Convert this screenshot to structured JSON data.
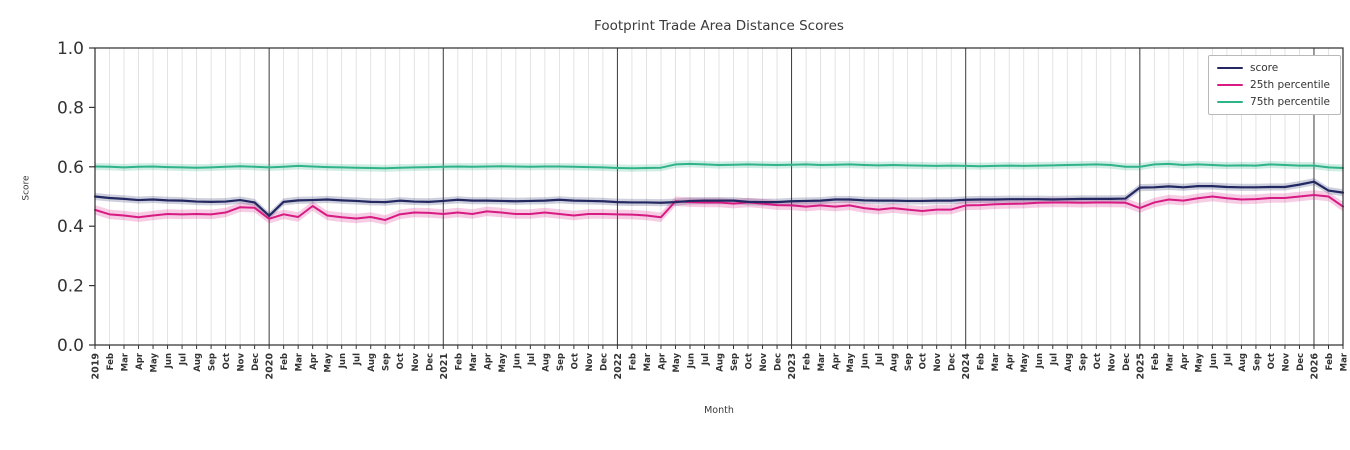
{
  "chart_data": {
    "type": "line",
    "title": "Footprint Trade Area Distance Scores",
    "xlabel": "Month",
    "ylabel": "Score",
    "ylim": [
      0.0,
      1.0
    ],
    "yticks": [
      0.0,
      0.2,
      0.4,
      0.6,
      0.8,
      1.0
    ],
    "grid": "vertical monthly gridlines; dark vertical lines at year starts; no horizontal gridlines",
    "legend_position": "upper right",
    "x_labels": [
      "2019",
      "Feb",
      "Mar",
      "Apr",
      "May",
      "Jun",
      "Jul",
      "Aug",
      "Sep",
      "Oct",
      "Nov",
      "Dec",
      "2020",
      "Feb",
      "Mar",
      "Apr",
      "May",
      "Jun",
      "Jul",
      "Aug",
      "Sep",
      "Oct",
      "Nov",
      "Dec",
      "2021",
      "Feb",
      "Mar",
      "Apr",
      "May",
      "Jun",
      "Jul",
      "Aug",
      "Sep",
      "Oct",
      "Nov",
      "Dec",
      "2022",
      "Feb",
      "Mar",
      "Apr",
      "May",
      "Jun",
      "Jul",
      "Aug",
      "Sep",
      "Oct",
      "Nov",
      "Dec",
      "2023",
      "Feb",
      "Mar",
      "Apr",
      "May",
      "Jun",
      "Jul",
      "Aug",
      "Sep",
      "Oct",
      "Nov",
      "Dec",
      "2024",
      "Feb",
      "Mar",
      "Apr",
      "May",
      "Jun",
      "Jul",
      "Aug",
      "Sep",
      "Oct",
      "Nov",
      "Dec",
      "2025",
      "Feb",
      "Mar",
      "Apr",
      "May",
      "Jun",
      "Jul",
      "Aug",
      "Sep",
      "Oct",
      "Nov",
      "Dec",
      "2026",
      "Feb",
      "Mar"
    ],
    "series": [
      {
        "name": "score",
        "color": "#232862",
        "band": 0.012,
        "values": [
          0.5,
          0.495,
          0.492,
          0.488,
          0.49,
          0.487,
          0.486,
          0.483,
          0.482,
          0.483,
          0.488,
          0.48,
          0.435,
          0.482,
          0.487,
          0.488,
          0.49,
          0.487,
          0.485,
          0.482,
          0.481,
          0.486,
          0.483,
          0.482,
          0.485,
          0.489,
          0.486,
          0.486,
          0.485,
          0.484,
          0.485,
          0.486,
          0.489,
          0.486,
          0.485,
          0.484,
          0.481,
          0.48,
          0.48,
          0.479,
          0.481,
          0.485,
          0.486,
          0.486,
          0.486,
          0.482,
          0.481,
          0.481,
          0.484,
          0.485,
          0.486,
          0.49,
          0.49,
          0.487,
          0.486,
          0.486,
          0.485,
          0.485,
          0.486,
          0.486,
          0.489,
          0.49,
          0.49,
          0.491,
          0.491,
          0.491,
          0.49,
          0.491,
          0.492,
          0.492,
          0.492,
          0.493,
          0.53,
          0.531,
          0.534,
          0.531,
          0.535,
          0.535,
          0.532,
          0.531,
          0.531,
          0.532,
          0.532,
          0.54,
          0.55,
          0.52,
          0.513
        ]
      },
      {
        "name": "25th percentile",
        "color": "#d81b83",
        "band": 0.016,
        "values": [
          0.455,
          0.44,
          0.436,
          0.43,
          0.436,
          0.441,
          0.44,
          0.441,
          0.44,
          0.446,
          0.464,
          0.462,
          0.425,
          0.44,
          0.431,
          0.468,
          0.436,
          0.43,
          0.426,
          0.431,
          0.421,
          0.44,
          0.446,
          0.445,
          0.441,
          0.446,
          0.441,
          0.45,
          0.446,
          0.441,
          0.441,
          0.446,
          0.441,
          0.436,
          0.441,
          0.441,
          0.44,
          0.439,
          0.436,
          0.43,
          0.484,
          0.481,
          0.48,
          0.48,
          0.476,
          0.48,
          0.476,
          0.471,
          0.47,
          0.466,
          0.47,
          0.466,
          0.47,
          0.461,
          0.456,
          0.461,
          0.456,
          0.451,
          0.456,
          0.456,
          0.47,
          0.471,
          0.474,
          0.475,
          0.476,
          0.479,
          0.48,
          0.48,
          0.479,
          0.48,
          0.48,
          0.479,
          0.461,
          0.48,
          0.49,
          0.486,
          0.494,
          0.5,
          0.494,
          0.49,
          0.491,
          0.495,
          0.495,
          0.5,
          0.505,
          0.5,
          0.466
        ]
      },
      {
        "name": "75th percentile",
        "color": "#2fb389",
        "band": 0.012,
        "values": [
          0.601,
          0.6,
          0.598,
          0.6,
          0.601,
          0.599,
          0.598,
          0.597,
          0.598,
          0.6,
          0.602,
          0.6,
          0.598,
          0.6,
          0.603,
          0.601,
          0.599,
          0.598,
          0.597,
          0.596,
          0.595,
          0.597,
          0.598,
          0.599,
          0.6,
          0.601,
          0.6,
          0.601,
          0.602,
          0.601,
          0.6,
          0.601,
          0.601,
          0.6,
          0.599,
          0.598,
          0.596,
          0.595,
          0.596,
          0.597,
          0.608,
          0.61,
          0.608,
          0.606,
          0.607,
          0.608,
          0.607,
          0.606,
          0.607,
          0.608,
          0.606,
          0.607,
          0.608,
          0.606,
          0.605,
          0.606,
          0.605,
          0.604,
          0.603,
          0.604,
          0.603,
          0.602,
          0.603,
          0.604,
          0.603,
          0.604,
          0.605,
          0.606,
          0.607,
          0.608,
          0.606,
          0.6,
          0.6,
          0.608,
          0.61,
          0.606,
          0.608,
          0.606,
          0.604,
          0.605,
          0.604,
          0.608,
          0.606,
          0.604,
          0.604,
          0.598,
          0.596
        ]
      }
    ]
  }
}
